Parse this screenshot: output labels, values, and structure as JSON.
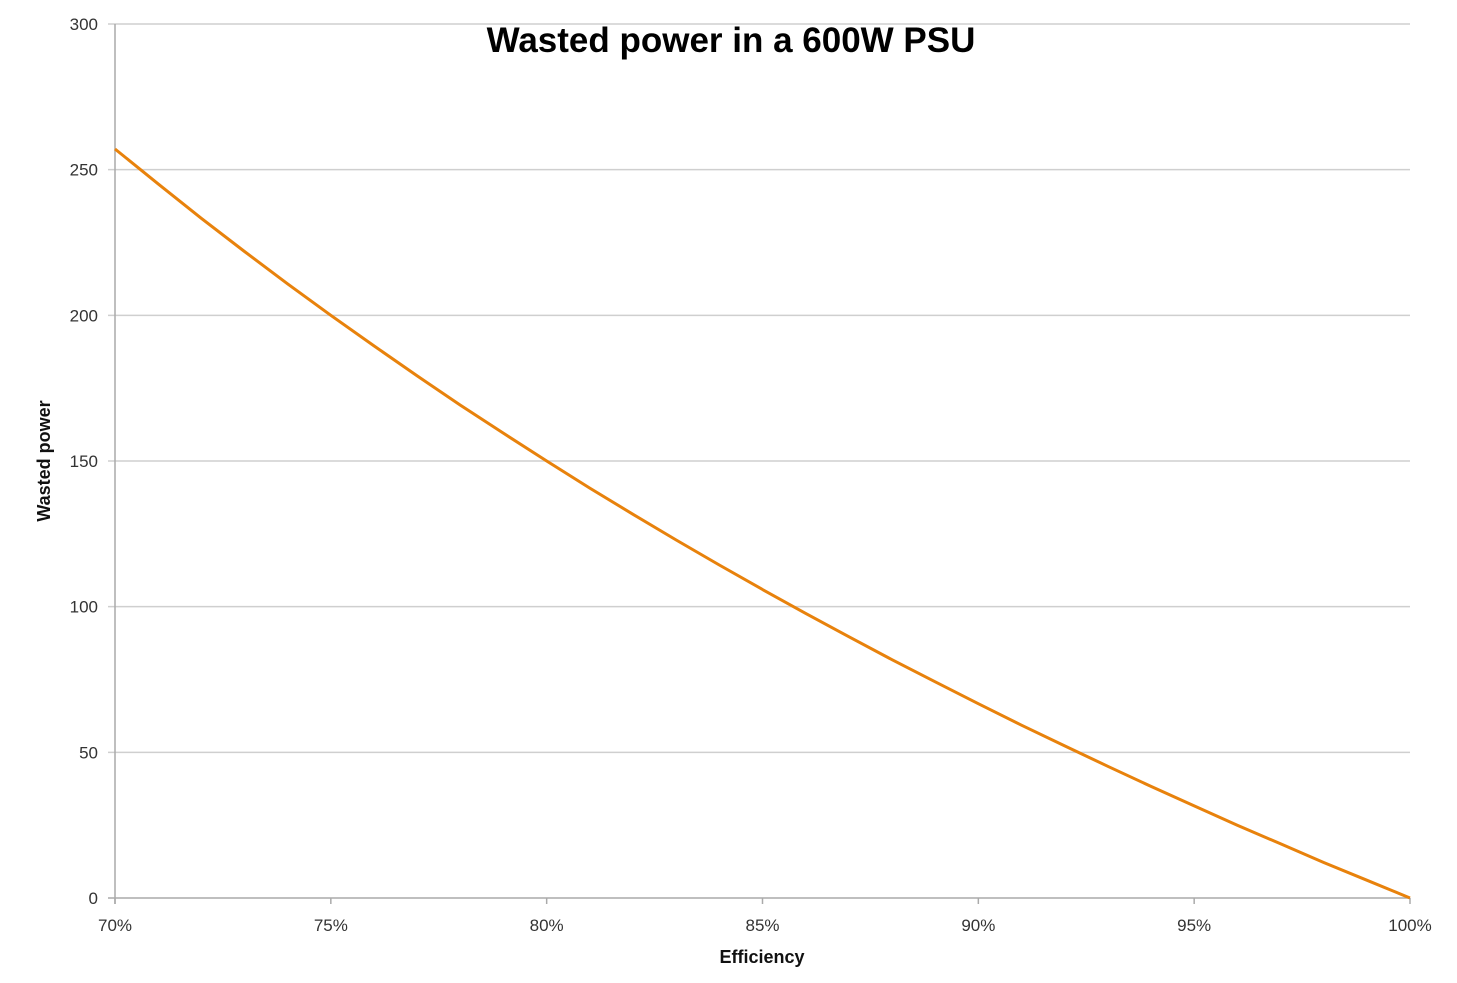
{
  "chart_data": {
    "type": "line",
    "title": "Wasted power in a 600W PSU",
    "xlabel": "Efficiency",
    "ylabel": "Wasted power",
    "xlim": [
      70,
      100
    ],
    "ylim": [
      0,
      300
    ],
    "x_ticks": [
      "70%",
      "75%",
      "80%",
      "85%",
      "90%",
      "95%",
      "100%"
    ],
    "x_tick_values": [
      70,
      75,
      80,
      85,
      90,
      95,
      100
    ],
    "y_ticks": [
      "0",
      "50",
      "100",
      "150",
      "200",
      "250",
      "300"
    ],
    "y_tick_values": [
      0,
      50,
      100,
      150,
      200,
      250,
      300
    ],
    "grid": "horizontal",
    "line_color": "#e8820c",
    "series": [
      {
        "x": [
          70,
          71,
          72,
          73,
          74,
          75,
          76,
          77,
          78,
          79,
          80,
          81,
          82,
          83,
          84,
          85,
          86,
          87,
          88,
          89,
          90,
          91,
          92,
          93,
          94,
          95,
          96,
          97,
          98,
          99,
          100
        ],
        "values": [
          257.1,
          245.1,
          233.3,
          221.9,
          210.8,
          200.0,
          189.5,
          179.2,
          169.2,
          159.5,
          150.0,
          140.7,
          131.7,
          122.9,
          114.3,
          105.9,
          97.7,
          89.7,
          81.8,
          74.2,
          66.7,
          59.3,
          52.2,
          45.2,
          38.3,
          31.6,
          25.0,
          18.6,
          12.2,
          6.1,
          0.0
        ]
      }
    ]
  }
}
